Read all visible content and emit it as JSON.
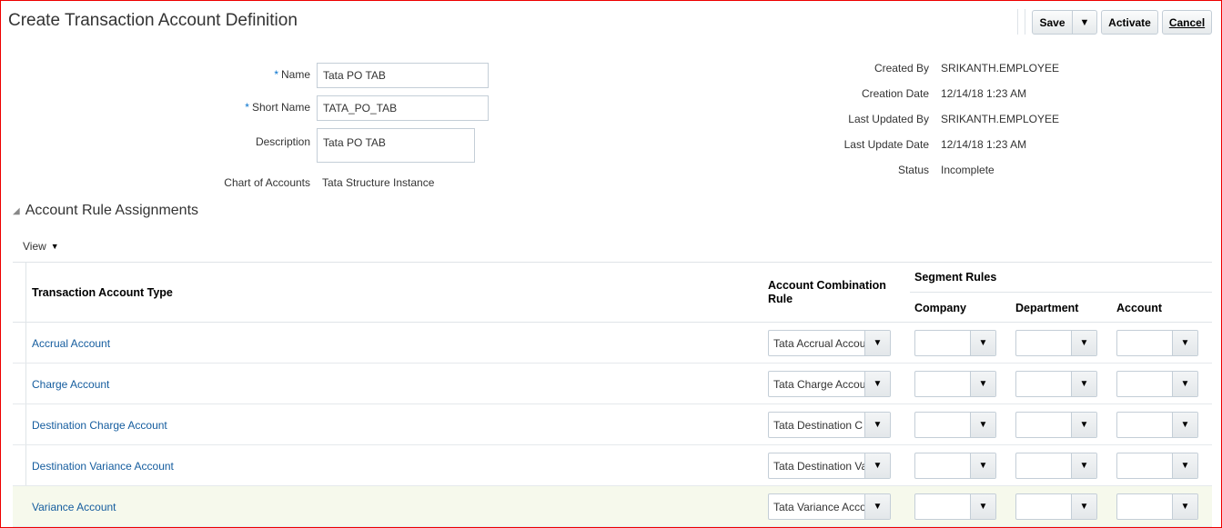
{
  "page": {
    "title": "Create Transaction Account Definition"
  },
  "toolbar": {
    "save_label": "Save",
    "save_menu_icon": "triangle-down",
    "activate_label": "Activate",
    "cancel_label": "Cancel"
  },
  "form": {
    "name_label": "Name",
    "name_value": "Tata PO TAB",
    "short_name_label": "Short Name",
    "short_name_value": "TATA_PO_TAB",
    "description_label": "Description",
    "description_value": "Tata PO TAB",
    "coa_label": "Chart of Accounts",
    "coa_value": "Tata Structure Instance",
    "required_marker": "*"
  },
  "info": {
    "created_by_label": "Created By",
    "created_by": "SRIKANTH.EMPLOYEE",
    "creation_date_label": "Creation Date",
    "creation_date": "12/14/18 1:23 AM",
    "last_updated_by_label": "Last Updated By",
    "last_updated_by": "SRIKANTH.EMPLOYEE",
    "last_update_date_label": "Last Update Date",
    "last_update_date": "12/14/18 1:23 AM",
    "status_label": "Status",
    "status": "Incomplete"
  },
  "section": {
    "title": "Account Rule Assignments",
    "view_label": "View"
  },
  "table": {
    "headers": {
      "type": "Transaction Account Type",
      "rule": "Account Combination Rule",
      "segment_rules": "Segment Rules",
      "company": "Company",
      "department": "Department",
      "account": "Account"
    },
    "rows": [
      {
        "type": "Accrual Account",
        "rule": "Tata Accrual Accou",
        "company": "",
        "department": "",
        "account": ""
      },
      {
        "type": "Charge Account",
        "rule": "Tata Charge Accou",
        "company": "",
        "department": "",
        "account": ""
      },
      {
        "type": "Destination Charge Account",
        "rule": "Tata Destination C",
        "company": "",
        "department": "",
        "account": ""
      },
      {
        "type": "Destination Variance Account",
        "rule": "Tata Destination Va",
        "company": "",
        "department": "",
        "account": ""
      },
      {
        "type": "Variance Account",
        "rule": "Tata Variance Acco",
        "company": "",
        "department": "",
        "account": ""
      }
    ],
    "selected_row": 4,
    "selected_row_color": "#f6f9ec"
  }
}
